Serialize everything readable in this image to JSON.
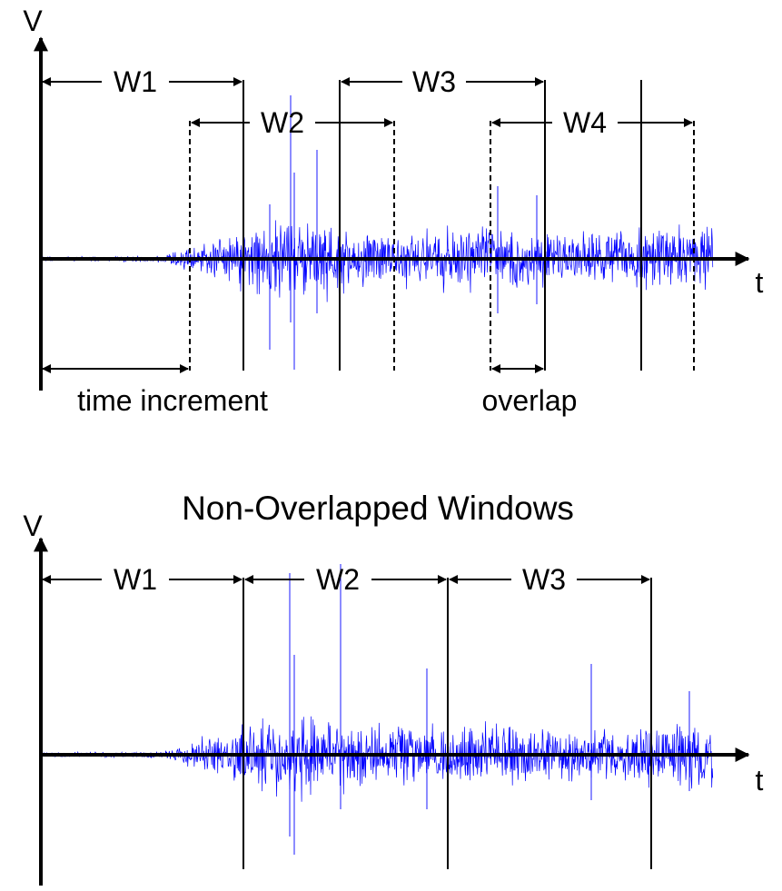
{
  "top_panel": {
    "y_axis_label": "V",
    "x_axis_label": "t",
    "windows": [
      {
        "label": "W1",
        "style": "solid"
      },
      {
        "label": "W2",
        "style": "dashed"
      },
      {
        "label": "W3",
        "style": "solid"
      },
      {
        "label": "W4",
        "style": "dashed"
      }
    ],
    "time_increment_label": "time increment",
    "overlap_label": "overlap"
  },
  "bottom_panel": {
    "title": "Non-Overlapped Windows",
    "y_axis_label": "V",
    "x_axis_label": "t",
    "windows": [
      {
        "label": "W1"
      },
      {
        "label": "W2"
      },
      {
        "label": "W3"
      }
    ]
  },
  "colors": {
    "signal": "#0000ff",
    "axes": "#000000"
  }
}
